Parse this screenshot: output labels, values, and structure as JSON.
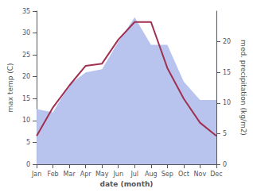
{
  "chart_data": {
    "type": "line",
    "xlabel": "date (month)",
    "ylabel": "max temp (C)",
    "y2label": "med. precipitation (kg/m2)",
    "categories": [
      "Jan",
      "Feb",
      "Mar",
      "Apr",
      "May",
      "Jun",
      "Jul",
      "Aug",
      "Sep",
      "Oct",
      "Nov",
      "Dec"
    ],
    "series": [
      {
        "type": "area",
        "axis": "y2",
        "color": "#b8c4ee",
        "values": [
          9.0,
          8.5,
          13.0,
          15.0,
          15.5,
          20.0,
          24.0,
          19.5,
          19.5,
          13.5,
          10.5,
          10.5
        ]
      },
      {
        "type": "line",
        "color": "#a03050",
        "values": [
          6.5,
          13.0,
          18.0,
          22.5,
          23.0,
          28.5,
          32.5,
          32.5,
          22.0,
          15.0,
          9.5,
          6.5
        ]
      }
    ],
    "ylim": [
      0,
      35
    ],
    "yticks": [
      0,
      5,
      10,
      15,
      20,
      25,
      30,
      35
    ],
    "y2lim": [
      0,
      25
    ],
    "y2ticks": [
      0,
      5,
      10,
      15,
      20
    ],
    "grid": false
  }
}
